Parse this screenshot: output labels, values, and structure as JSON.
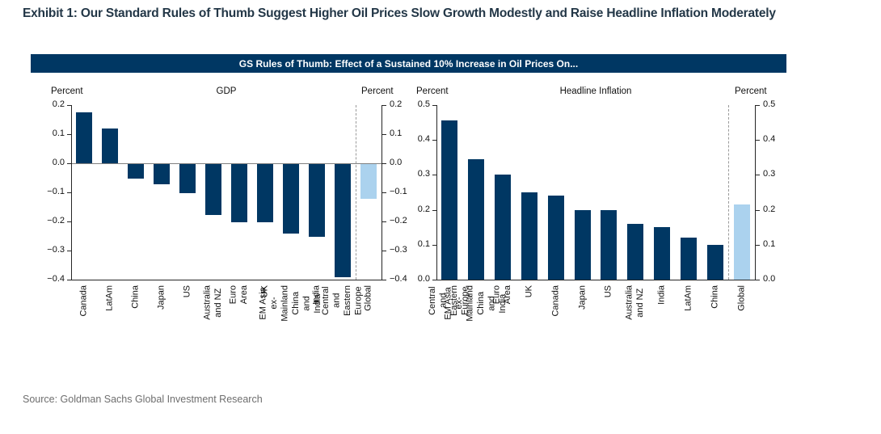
{
  "title": "Exhibit 1: Our Standard Rules of Thumb Suggest Higher Oil Prices Slow Growth Modestly and Raise Headline Inflation Moderately",
  "banner": "GS Rules of Thumb: Effect of a Sustained 10% Increase in Oil Prices On...",
  "source": "Source: Goldman Sachs Global Investment Research",
  "colors": {
    "navy": "#003763",
    "light_blue": "#abd2ee",
    "banner_bg": "#003763",
    "title_text": "#233747",
    "source_text": "#6e6e6e",
    "zero_line": "#808080",
    "separator": "#9a9a9a",
    "axis": "#262626"
  },
  "chart_data": [
    {
      "type": "bar",
      "title": "GDP",
      "left_axis_label": "Percent",
      "right_axis_label": "Percent",
      "ylim": [
        -0.4,
        0.2
      ],
      "yticks": [
        "0.2",
        "0.1",
        "0.0",
        "−0.1",
        "−0.2",
        "−0.3",
        "−0.4"
      ],
      "grid": false,
      "legend": "none",
      "categories": [
        "Canada",
        "LatAm",
        "China",
        "Japan",
        "US",
        "Australia and NZ",
        "Euro Area",
        "UK",
        "EM Asia ex-Mainland\nChina and India",
        "India",
        "Central and Eastern\nEurope",
        "Global"
      ],
      "values": [
        0.175,
        0.12,
        -0.05,
        -0.07,
        -0.1,
        -0.175,
        -0.2,
        -0.2,
        -0.24,
        -0.25,
        -0.39,
        -0.12
      ],
      "highlight_category": "Global"
    },
    {
      "type": "bar",
      "title": "Headline Inflation",
      "left_axis_label": "Percent",
      "right_axis_label": "Percent",
      "ylim": [
        0,
        0.5
      ],
      "yticks": [
        "0.5",
        "0.4",
        "0.3",
        "0.2",
        "0.1",
        "0.0"
      ],
      "grid": false,
      "legend": "none",
      "categories": [
        "Central and Eastern\nEurope",
        "EM Asia ex-Mainland\nChina and India",
        "Euro Area",
        "UK",
        "Canada",
        "Japan",
        "US",
        "Australia and NZ",
        "India",
        "LatAm",
        "China",
        "Global"
      ],
      "values": [
        0.455,
        0.345,
        0.3,
        0.25,
        0.24,
        0.2,
        0.2,
        0.16,
        0.15,
        0.12,
        0.1,
        0.215
      ],
      "highlight_category": "Global"
    }
  ]
}
